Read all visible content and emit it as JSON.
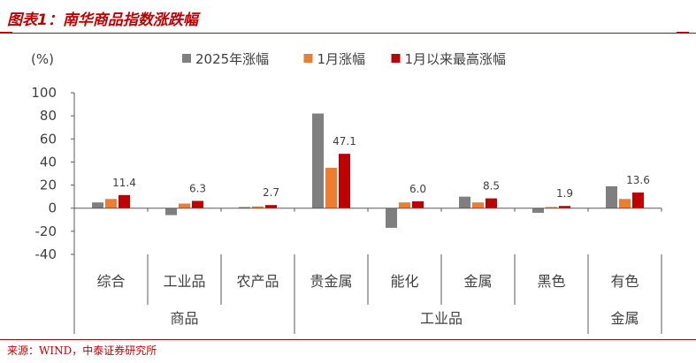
{
  "figure": {
    "title": "图表1：南华商品指数涨跌幅",
    "source": "来源：WIND，中泰证券研究所"
  },
  "colors": {
    "accent": "#c00000",
    "series": [
      "#7f7f7f",
      "#ed7d31",
      "#c00000"
    ],
    "axis": "#595959",
    "text": "#404040"
  },
  "chart_data": {
    "type": "bar",
    "ylabel": "(%)",
    "ylim": [
      -40,
      100
    ],
    "yticks": [
      100,
      80,
      60,
      40,
      20,
      0,
      -20,
      -40
    ],
    "grid": false,
    "legend_position": "top",
    "categories": [
      "综合",
      "工业品",
      "农产品",
      "贵金属",
      "能化",
      "金属",
      "黑色",
      "有色"
    ],
    "groups": [
      {
        "label": "商品",
        "span": [
          0,
          3
        ]
      },
      {
        "label": "工业品",
        "span": [
          3,
          7
        ]
      },
      {
        "label": "金属",
        "span": [
          7,
          8
        ]
      }
    ],
    "series": [
      {
        "name": "2025年涨幅",
        "values": [
          5,
          -6,
          1,
          82,
          -17,
          10,
          -4,
          19
        ]
      },
      {
        "name": "1月涨幅",
        "values": [
          8,
          4,
          1.5,
          35,
          5,
          5,
          1,
          8
        ]
      },
      {
        "name": "1月以来最高涨幅",
        "values": [
          11.4,
          6.3,
          2.7,
          47.1,
          6.0,
          8.5,
          1.9,
          13.6
        ]
      }
    ],
    "data_labels": {
      "series_index": 2,
      "labels": [
        "11.4",
        "6.3",
        "2.7",
        "47.1",
        "6.0",
        "8.5",
        "1.9",
        "13.6"
      ]
    }
  }
}
